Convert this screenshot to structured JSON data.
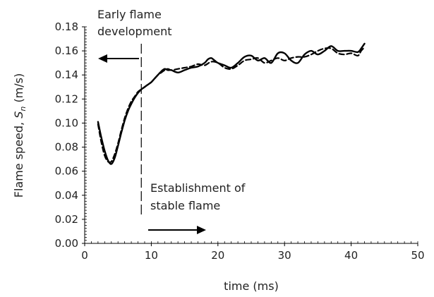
{
  "chart_data": {
    "type": "line",
    "title": "",
    "xlabel": "time (ms)",
    "ylabel_main": "Flame speed, ",
    "ylabel_symbol": "S",
    "ylabel_subscript": "n",
    "ylabel_unit": " (m/s)",
    "xlim": [
      0,
      50
    ],
    "ylim": [
      0,
      0.18
    ],
    "xticks": [
      0,
      10,
      20,
      30,
      40,
      50
    ],
    "yticks": [
      "0.00",
      "0.02",
      "0.04",
      "0.06",
      "0.08",
      "0.10",
      "0.12",
      "0.14",
      "0.16",
      "0.18"
    ],
    "grid": false,
    "legend": "none",
    "series": [
      {
        "style": "solid",
        "color": "#000000",
        "x": [
          2.0,
          2.5,
          3.0,
          3.5,
          4.0,
          4.5,
          5.0,
          5.5,
          6.0,
          6.5,
          7.0,
          7.5,
          8.0,
          8.5,
          9.0,
          9.5,
          10.0,
          10.5,
          11.0,
          11.5,
          12.0,
          12.5,
          13.0,
          14.0,
          15.0,
          16.0,
          17.0,
          18.0,
          18.5,
          19.0,
          19.5,
          20.0,
          21.0,
          22.0,
          23.0,
          24.0,
          25.0,
          26.0,
          27.0,
          28.0,
          29.0,
          30.0,
          31.0,
          32.0,
          33.0,
          34.0,
          35.0,
          36.0,
          37.0,
          38.0,
          39.0,
          40.0,
          41.0,
          41.5,
          42.0
        ],
        "y": [
          0.101,
          0.088,
          0.077,
          0.069,
          0.066,
          0.071,
          0.081,
          0.092,
          0.102,
          0.11,
          0.116,
          0.121,
          0.125,
          0.128,
          0.13,
          0.132,
          0.134,
          0.137,
          0.14,
          0.143,
          0.145,
          0.144,
          0.144,
          0.142,
          0.144,
          0.146,
          0.147,
          0.15,
          0.153,
          0.154,
          0.152,
          0.15,
          0.148,
          0.146,
          0.15,
          0.155,
          0.156,
          0.152,
          0.154,
          0.15,
          0.158,
          0.158,
          0.152,
          0.15,
          0.157,
          0.16,
          0.157,
          0.16,
          0.164,
          0.16,
          0.16,
          0.16,
          0.159,
          0.162,
          0.166
        ]
      },
      {
        "style": "dashed",
        "color": "#000000",
        "x": [
          2.0,
          2.5,
          3.0,
          3.5,
          4.0,
          4.5,
          5.0,
          5.5,
          6.0,
          6.5,
          7.0,
          7.5,
          8.0,
          8.5,
          9.0,
          9.5,
          10.0,
          10.5,
          11.0,
          11.5,
          12.0,
          12.5,
          13.0,
          14.0,
          15.0,
          16.0,
          17.0,
          18.0,
          19.0,
          20.0,
          21.0,
          22.0,
          23.0,
          24.0,
          25.0,
          26.0,
          27.0,
          28.0,
          29.0,
          30.0,
          31.0,
          32.0,
          33.0,
          34.0,
          35.0,
          36.0,
          37.0,
          38.0,
          39.0,
          40.0,
          41.0,
          41.5,
          42.0
        ],
        "y": [
          0.099,
          0.084,
          0.073,
          0.068,
          0.068,
          0.074,
          0.083,
          0.094,
          0.104,
          0.112,
          0.118,
          0.122,
          0.126,
          0.128,
          0.13,
          0.132,
          0.134,
          0.137,
          0.14,
          0.142,
          0.144,
          0.145,
          0.144,
          0.145,
          0.146,
          0.147,
          0.149,
          0.148,
          0.151,
          0.15,
          0.146,
          0.145,
          0.148,
          0.152,
          0.153,
          0.154,
          0.15,
          0.152,
          0.154,
          0.152,
          0.154,
          0.155,
          0.155,
          0.157,
          0.16,
          0.162,
          0.162,
          0.158,
          0.157,
          0.158,
          0.156,
          0.16,
          0.163
        ]
      }
    ],
    "annotations": {
      "divider_x": 8.5,
      "left_text_line1": "Early flame",
      "left_text_line2": "development",
      "right_text_line1": "Establishment of",
      "right_text_line2": "stable flame"
    }
  }
}
